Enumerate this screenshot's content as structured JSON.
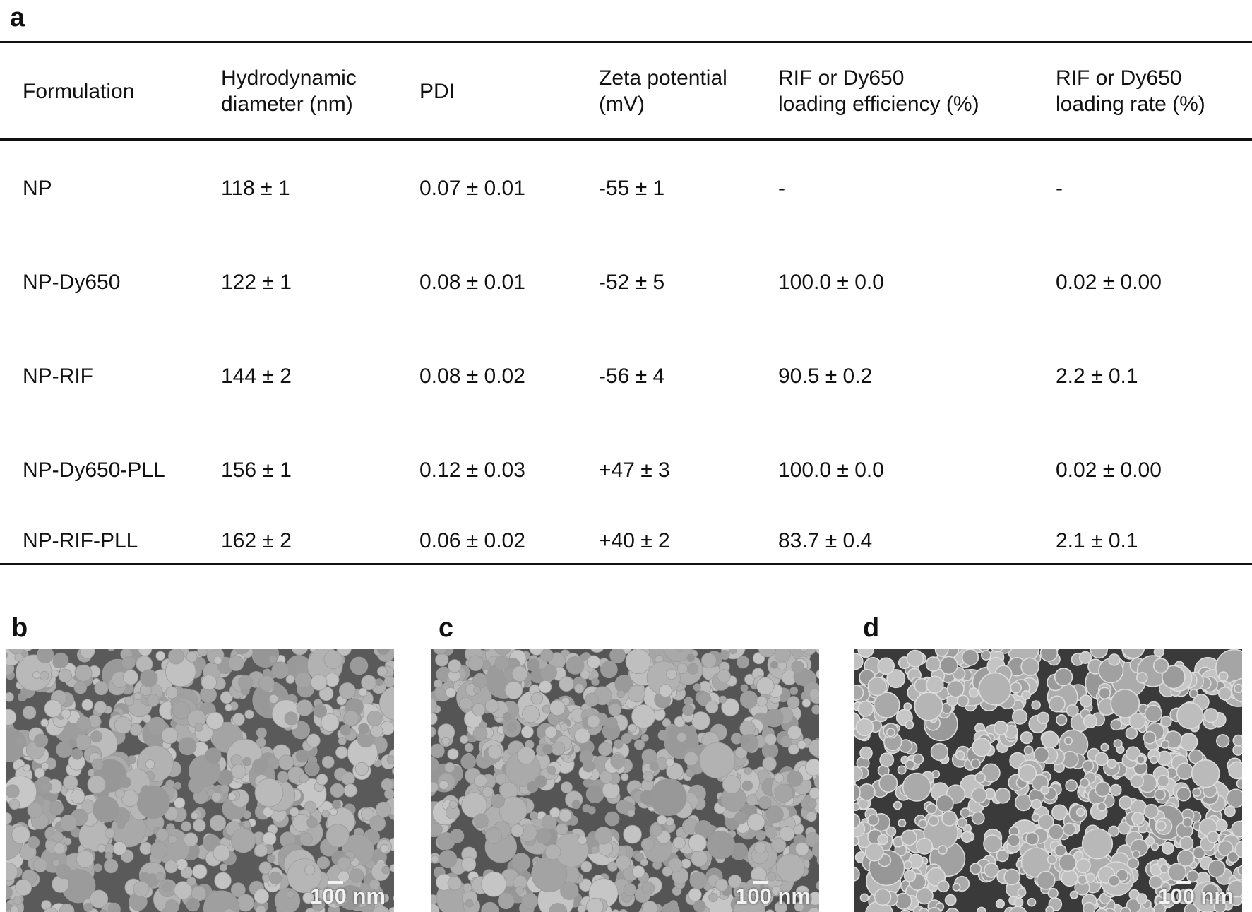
{
  "panels": {
    "a": "a",
    "b": "b",
    "c": "c",
    "d": "d"
  },
  "table": {
    "headers": [
      [
        "Formulation"
      ],
      [
        "Hydrodynamic",
        "diameter (nm)"
      ],
      [
        "PDI"
      ],
      [
        "Zeta potential",
        "(mV)"
      ],
      [
        "RIF or Dy650",
        "loading efficiency (%)"
      ],
      [
        "RIF or Dy650",
        "loading rate (%)"
      ]
    ],
    "rows": [
      [
        "NP",
        "118  ± 1",
        "0.07 ± 0.01",
        "-55 ± 1",
        "-",
        "-"
      ],
      [
        "NP-Dy650",
        "122 ± 1",
        "0.08 ± 0.01",
        "-52 ± 5",
        "100.0 ± 0.0",
        "0.02 ± 0.00"
      ],
      [
        "NP-RIF",
        "144  ± 2",
        "0.08 ± 0.02",
        "-56 ± 4",
        "90.5 ± 0.2",
        "2.2 ± 0.1"
      ],
      [
        "NP-Dy650-PLL",
        "156 ± 1",
        "0.12 ± 0.03",
        "+47 ± 3",
        "100.0 ± 0.0",
        "0.02 ± 0.00"
      ],
      [
        "NP-RIF-PLL",
        "162 ± 2",
        "0.06 ± 0.02",
        "+40 ± 2",
        "83.7 ± 0.4",
        "2.1 ± 0.1"
      ]
    ]
  },
  "images": [
    {
      "scale_bar": "100 nm",
      "tone": "#5a5a5a"
    },
    {
      "scale_bar": "100 nm",
      "tone": "#555555"
    },
    {
      "scale_bar": "100 nm",
      "tone": "#3a3a3a"
    }
  ]
}
